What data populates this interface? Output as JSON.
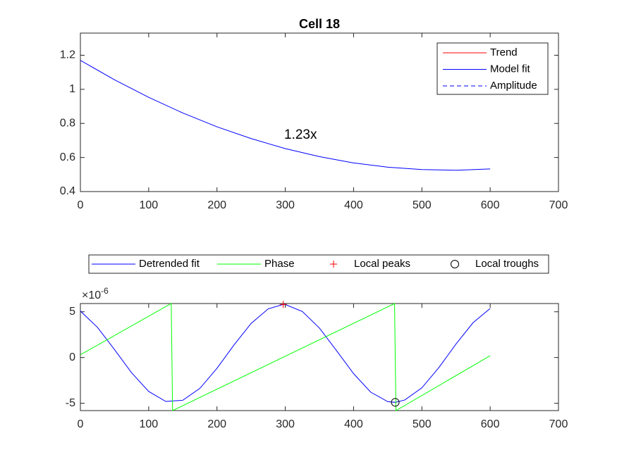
{
  "chart_data": [
    {
      "type": "line",
      "title": "Cell 18",
      "x": [
        0,
        50,
        100,
        150,
        200,
        250,
        300,
        350,
        400,
        450,
        500,
        550,
        600
      ],
      "series": [
        {
          "name": "Trend",
          "color": "#ff0000",
          "linestyle": "solid"
        },
        {
          "name": "Model fit",
          "color": "#0000ff",
          "linestyle": "solid",
          "values": [
            1.17,
            1.056,
            0.953,
            0.861,
            0.78,
            0.711,
            0.652,
            0.605,
            0.568,
            0.543,
            0.529,
            0.525,
            0.533
          ]
        },
        {
          "name": "Amplitude",
          "color": "#0000ff",
          "linestyle": "dashed"
        }
      ],
      "annotation": "1.23x",
      "xlim": [
        0,
        700
      ],
      "xticks": [
        0,
        100,
        200,
        300,
        400,
        500,
        600,
        700
      ],
      "ylim": [
        0.4,
        1.33
      ],
      "yticks": [
        0.4,
        0.6,
        0.8,
        1,
        1.2
      ],
      "legend": "northeast"
    },
    {
      "type": "line",
      "x": [
        0,
        25,
        50,
        75,
        100,
        125,
        150,
        175,
        200,
        225,
        250,
        275,
        297,
        300,
        325,
        350,
        375,
        400,
        425,
        450,
        461,
        475,
        500,
        525,
        550,
        575,
        600
      ],
      "series": [
        {
          "name": "Detrended fit",
          "color": "#0000ff",
          "linestyle": "solid",
          "values": [
            5.08,
            3.3,
            0.86,
            -1.67,
            -3.71,
            -4.8,
            -4.67,
            -3.37,
            -1.18,
            1.38,
            3.73,
            5.32,
            5.8,
            5.79,
            5.03,
            3.22,
            0.76,
            -1.76,
            -3.78,
            -4.82,
            -4.9,
            -4.64,
            -3.31,
            -1.09,
            1.48,
            3.81,
            5.36
          ]
        },
        {
          "name": "Phase",
          "color": "#00ff00",
          "linestyle": "solid",
          "x": [
            0,
            133,
            135,
            460,
            462,
            600
          ],
          "values": [
            0.3,
            5.9,
            -5.8,
            5.9,
            -5.8,
            0.2
          ]
        },
        {
          "name": "Local peaks",
          "color": "#ff0000",
          "marker": "plus",
          "x": [
            297
          ],
          "values": [
            5.8
          ]
        },
        {
          "name": "Local troughs",
          "color": "#000000",
          "marker": "circle",
          "x": [
            461
          ],
          "values": [
            -4.9
          ]
        }
      ],
      "y_multiplier": "×10",
      "y_exponent": -6,
      "xlim": [
        0,
        700
      ],
      "xticks": [
        0,
        100,
        200,
        300,
        400,
        500,
        600,
        700
      ],
      "ylim": [
        -5.8,
        5.9
      ],
      "yticks": [
        -5,
        0,
        5
      ],
      "legend": "northoutside"
    }
  ]
}
